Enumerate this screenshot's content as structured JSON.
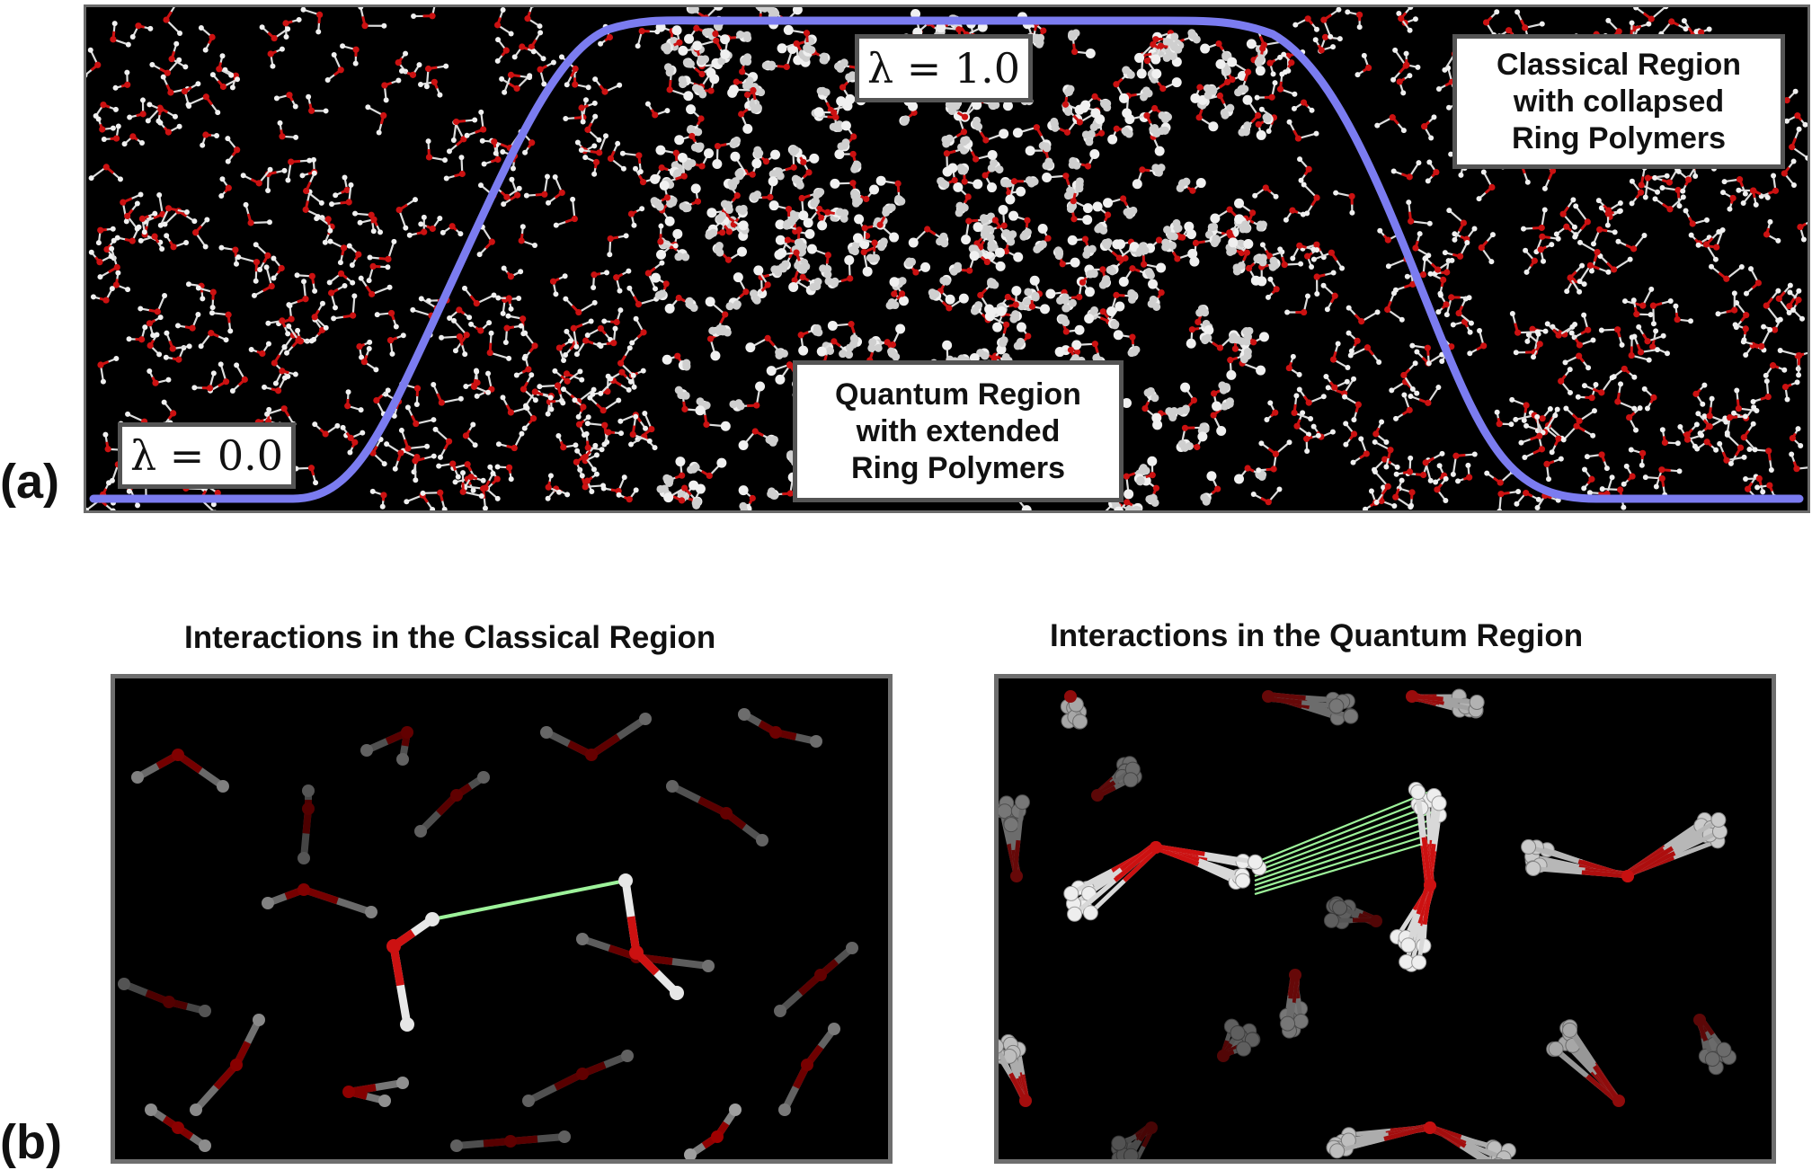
{
  "panel_a": {
    "label": "(a)",
    "lambda_low": "λ = 0.0",
    "lambda_high": "λ = 1.0",
    "classical_box": "Classical Region\nwith collapsed\nRing Polymers",
    "quantum_box": "Quantum Region\nwith extended\nRing Polymers",
    "curve_color": "#7b7cf0"
  },
  "panel_b": {
    "label": "(b)",
    "left_title": "Interactions in the Classical Region",
    "right_title": "Interactions in the Quantum Region",
    "interaction_color": "#9df29a",
    "oxygen_color": "#cc1111",
    "hydrogen_color": "#e6e6e6"
  }
}
